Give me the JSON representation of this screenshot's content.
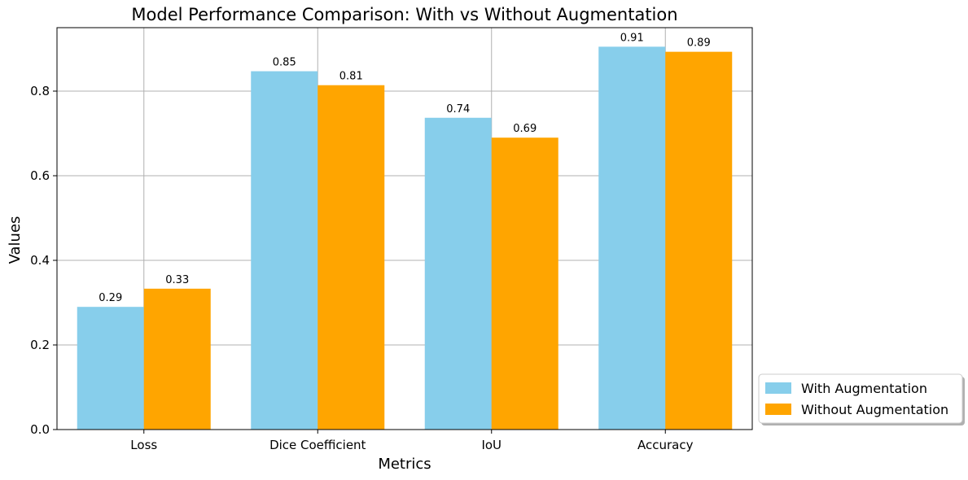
{
  "chart_data": {
    "type": "bar",
    "title": "Model Performance Comparison: With vs Without Augmentation",
    "xlabel": "Metrics",
    "ylabel": "Values",
    "categories": [
      "Loss",
      "Dice Coefficient",
      "IoU",
      "Accuracy"
    ],
    "series": [
      {
        "name": "With Augmentation",
        "color": "#87CEEB",
        "values": [
          0.29,
          0.847,
          0.737,
          0.905
        ],
        "labels": [
          "0.29",
          "0.85",
          "0.74",
          "0.91"
        ]
      },
      {
        "name": "Without Augmentation",
        "color": "#FFA500",
        "values": [
          0.333,
          0.814,
          0.69,
          0.893
        ],
        "labels": [
          "0.33",
          "0.81",
          "0.69",
          "0.89"
        ]
      }
    ],
    "ylim": [
      0,
      0.95
    ],
    "yticks": [
      0.0,
      0.2,
      0.4,
      0.6,
      0.8
    ],
    "ytick_labels": [
      "0.0",
      "0.2",
      "0.4",
      "0.6",
      "0.8"
    ],
    "grid": true,
    "legend_position": "lower-right-outside"
  }
}
